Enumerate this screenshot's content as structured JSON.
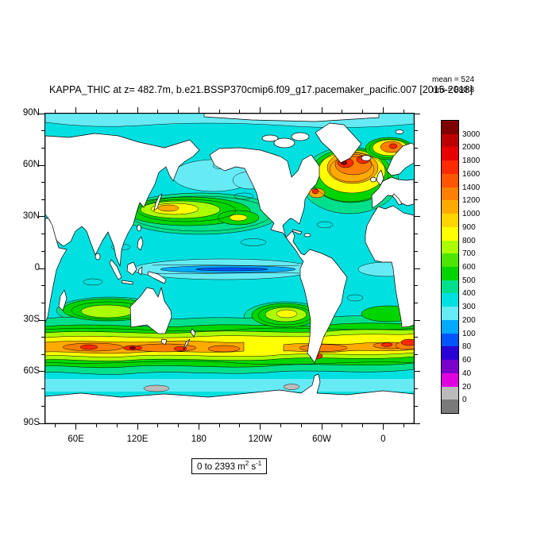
{
  "figure": {
    "title": "KAPPA_THIC at z= 482.7m, b.e21.BSSP370cmip6.f09_g17.pacemaker_pacific.007 [2015-2018]",
    "stats": {
      "mean": "mean = 524",
      "rms": "rms = 880.8"
    },
    "units_label": {
      "prefix": "0 to 2393 m",
      "sup1": "2",
      "mid": " s",
      "sup2": "-1"
    }
  },
  "axes": {
    "y_ticks": [
      {
        "label": "90N",
        "f": 0.0
      },
      {
        "label": "60N",
        "f": 0.1667
      },
      {
        "label": "30N",
        "f": 0.3333
      },
      {
        "label": "0",
        "f": 0.5
      },
      {
        "label": "30S",
        "f": 0.6667
      },
      {
        "label": "60S",
        "f": 0.8333
      },
      {
        "label": "90S",
        "f": 1.0
      }
    ],
    "x_ticks": [
      {
        "label": "60E",
        "f": 0.0833
      },
      {
        "label": "120E",
        "f": 0.25
      },
      {
        "label": "180",
        "f": 0.4167
      },
      {
        "label": "120W",
        "f": 0.5833
      },
      {
        "label": "60W",
        "f": 0.75
      },
      {
        "label": "0",
        "f": 0.9167
      }
    ]
  },
  "colorbar": {
    "labels": [
      "3000",
      "2000",
      "1800",
      "1600",
      "1400",
      "1200",
      "1000",
      "900",
      "800",
      "700",
      "600",
      "500",
      "400",
      "300",
      "200",
      "100",
      "80",
      "60",
      "40",
      "20",
      "0"
    ],
    "colors": [
      "#7f0000",
      "#bc0000",
      "#e60000",
      "#ff2a00",
      "#ff5500",
      "#ff8000",
      "#ffaa00",
      "#ffd500",
      "#ffff00",
      "#aaff00",
      "#4ce600",
      "#00d500",
      "#00e08c",
      "#00e0e0",
      "#66ebf5",
      "#00aaff",
      "#0055ff",
      "#2a00d5",
      "#7a00cc",
      "#e000e0",
      "#bbbbbb",
      "#7a7a7a"
    ]
  },
  "chart_data": {
    "type": "heatmap",
    "subtype": "filled_contour_world_map",
    "title": "KAPPA_THIC at z= 482.7m, b.e21.BSSP370cmip6.f09_g17.pacemaker_pacific.007 [2015-2018]",
    "variable": "KAPPA_THIC",
    "depth_level": "482.7m",
    "case": "b.e21.BSSP370cmip6.f09_g17.pacemaker_pacific.007",
    "time_period": "2015-2018",
    "statistics": {
      "mean": 524,
      "rms": 880.8
    },
    "data_range": {
      "min": 0,
      "max": 2393,
      "units": "m2 s-1"
    },
    "contour_levels": [
      0,
      20,
      40,
      60,
      80,
      100,
      200,
      300,
      400,
      500,
      600,
      700,
      800,
      900,
      1000,
      1200,
      1400,
      1600,
      1800,
      2000,
      3000
    ],
    "fill_palette_top_to_bottom": [
      "#7f0000",
      "#bc0000",
      "#e60000",
      "#ff2a00",
      "#ff5500",
      "#ff8000",
      "#ffaa00",
      "#ffd500",
      "#ffff00",
      "#aaff00",
      "#4ce600",
      "#00d500",
      "#00e08c",
      "#00e0e0",
      "#66ebf5",
      "#00aaff",
      "#0055ff",
      "#2a00d5",
      "#7a00cc",
      "#e000e0",
      "#bbbbbb",
      "#7a7a7a"
    ],
    "x_axis": {
      "tick_labels": [
        "60E",
        "120E",
        "180",
        "120W",
        "60W",
        "0"
      ],
      "note": "longitude, Pacific-centered map, left edge near 30E"
    },
    "y_axis": {
      "tick_labels": [
        "90N",
        "60N",
        "30N",
        "0",
        "30S",
        "60S",
        "90S"
      ],
      "note": "latitude 90N to 90S"
    },
    "land_mask": "continents masked white with black coastlines",
    "notable_features": [
      "Background open-ocean values ~300-500 (cyan)",
      "North Pacific subtropical gyre maximum ~1000-1200 near 30N,165E with secondary ~800 blob near 30N,150W",
      "North Atlantic maximum 1400-3000 over 40-65N, 70W-10W (Gulf Stream / North Atlantic Current)",
      "Norwegian/Nordic Seas local maximum ~1200-1800 near 68N,5E",
      "Circumpolar Southern Ocean band 800-2000 between about 38S and 60S, strongest in Indian sector, south of Australia, near Agulhas and Drake Passage",
      "Southeast Pacific local maximum ~800-900 near 29S,95W",
      "Equatorial Pacific minimum 0-200 (pale/blue stripe along the equator)",
      "Near-zero gray patches along the Antarctic margin"
    ]
  }
}
